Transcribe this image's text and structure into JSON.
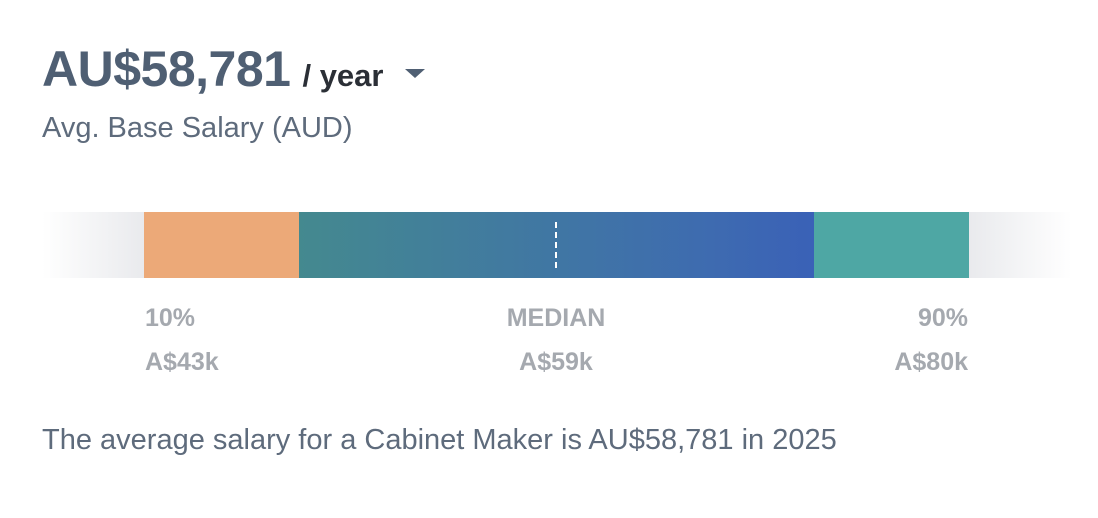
{
  "salary": {
    "amount": "AU$58,781",
    "period": "/ year",
    "subtitle": "Avg. Base Salary (AUD)"
  },
  "range": {
    "low": {
      "percentile_label": "10%",
      "value_label": "A$43k"
    },
    "median": {
      "percentile_label": "MEDIAN",
      "value_label": "A$59k"
    },
    "high": {
      "percentile_label": "90%",
      "value_label": "A$80k"
    },
    "colors": {
      "low_segment": "#eca978",
      "mid_segment_start": "#44898f",
      "mid_segment_end": "#3a61b7",
      "high_segment": "#4ea7a4"
    }
  },
  "summary_text": "The average salary for a Cabinet Maker is AU$58,781 in 2025"
}
